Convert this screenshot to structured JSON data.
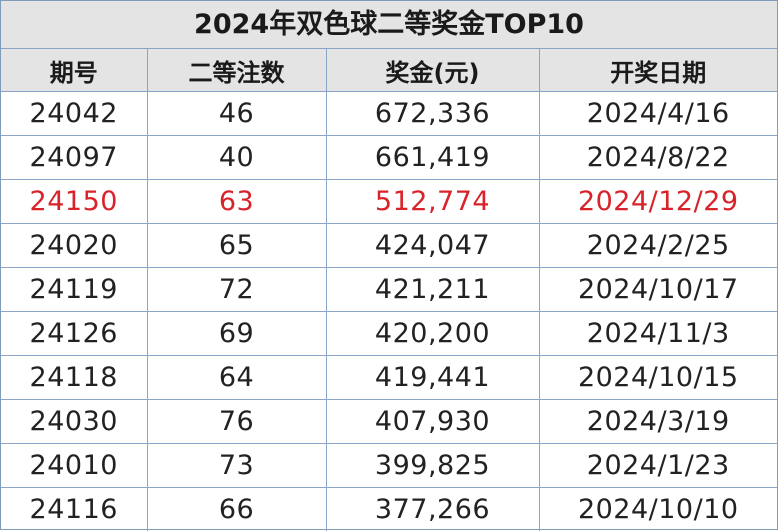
{
  "title": "2024年双色球二等奖金TOP10",
  "columns": [
    "期号",
    "二等注数",
    "奖金(元)",
    "开奖日期"
  ],
  "highlight_color": "#d9232a",
  "rows": [
    {
      "issue": "24042",
      "winners": "46",
      "prize": "672,336",
      "date": "2024/4/16",
      "highlight": false
    },
    {
      "issue": "24097",
      "winners": "40",
      "prize": "661,419",
      "date": "2024/8/22",
      "highlight": false
    },
    {
      "issue": "24150",
      "winners": "63",
      "prize": "512,774",
      "date": "2024/12/29",
      "highlight": true
    },
    {
      "issue": "24020",
      "winners": "65",
      "prize": "424,047",
      "date": "2024/2/25",
      "highlight": false
    },
    {
      "issue": "24119",
      "winners": "72",
      "prize": "421,211",
      "date": "2024/10/17",
      "highlight": false
    },
    {
      "issue": "24126",
      "winners": "69",
      "prize": "420,200",
      "date": "2024/11/3",
      "highlight": false
    },
    {
      "issue": "24118",
      "winners": "64",
      "prize": "419,441",
      "date": "2024/10/15",
      "highlight": false
    },
    {
      "issue": "24030",
      "winners": "76",
      "prize": "407,930",
      "date": "2024/3/19",
      "highlight": false
    },
    {
      "issue": "24010",
      "winners": "73",
      "prize": "399,825",
      "date": "2024/1/23",
      "highlight": false
    },
    {
      "issue": "24116",
      "winners": "66",
      "prize": "377,266",
      "date": "2024/10/10",
      "highlight": false
    }
  ]
}
